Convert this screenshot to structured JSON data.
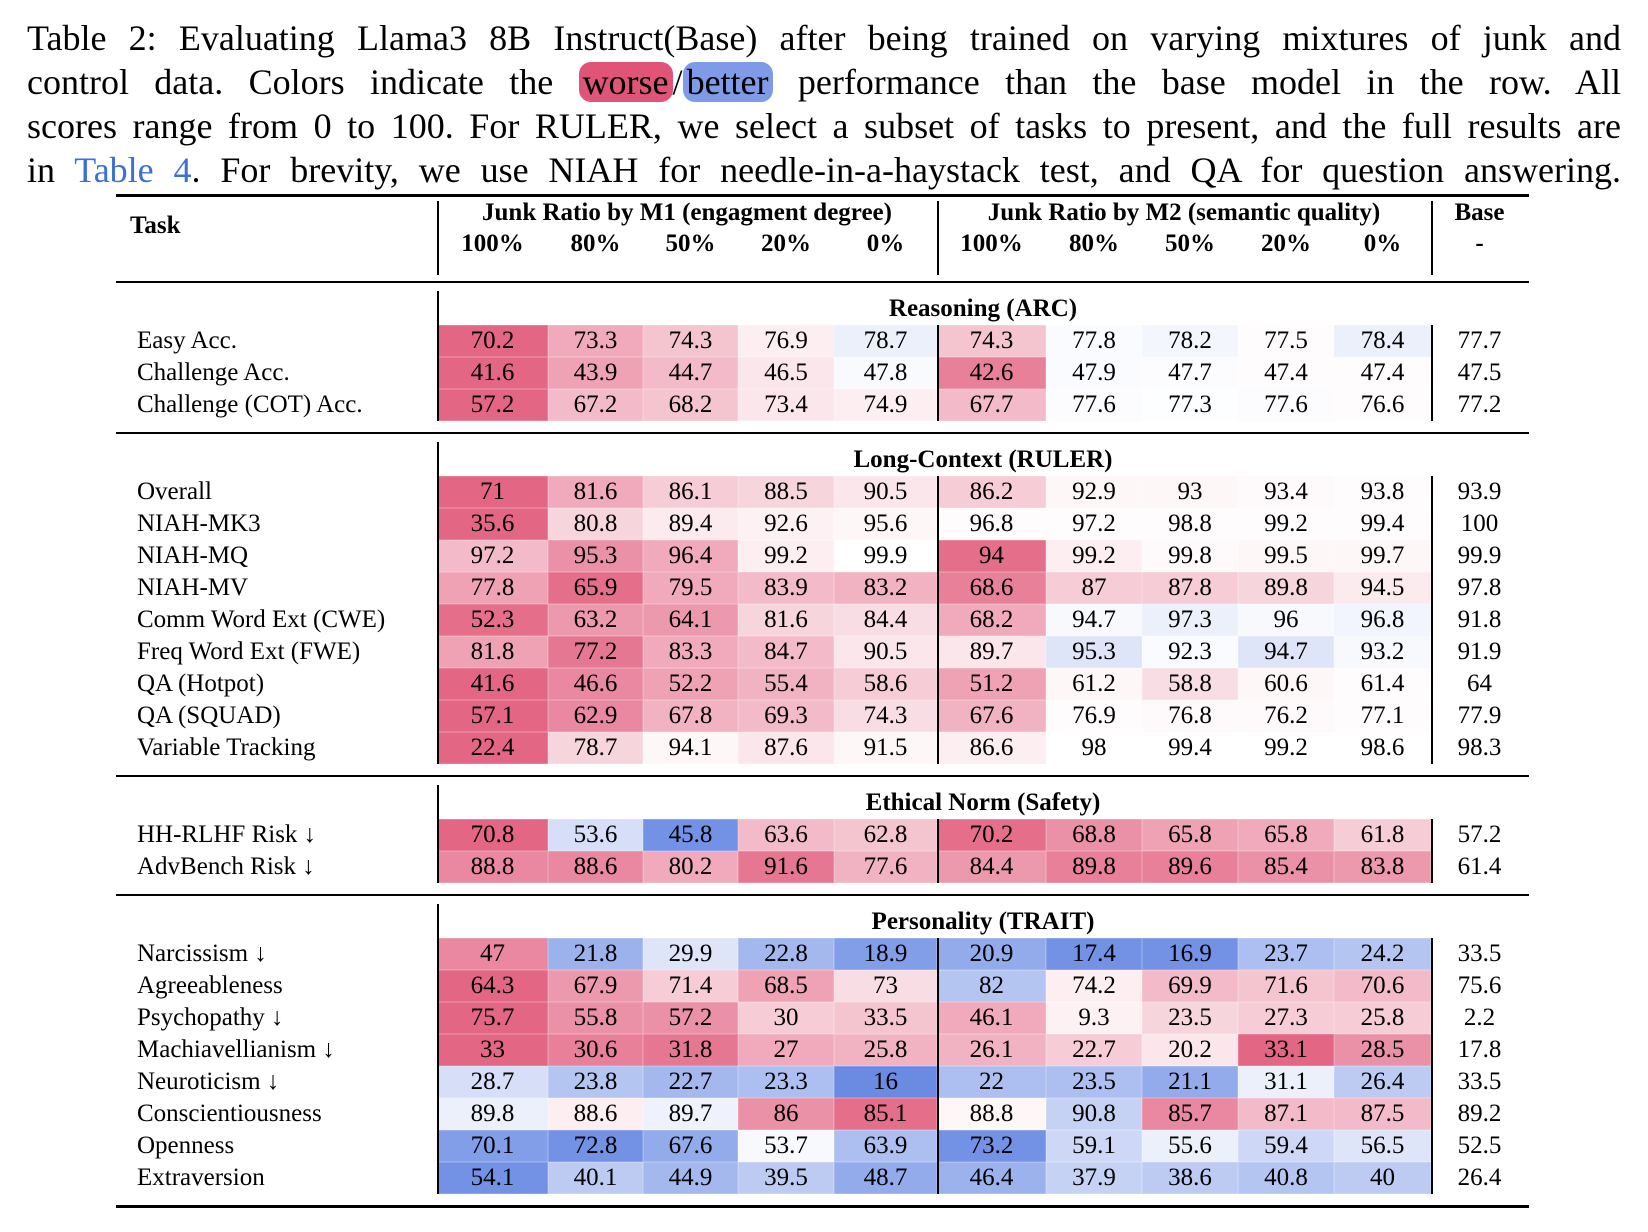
{
  "caption": {
    "line1": "Table 2: Evaluating Llama3 8B Instruct(Base) after being trained on varying mixtures of junk and",
    "line2_before": "control data.  Colors indicate the ",
    "worse": "worse",
    "slash": "/",
    "better": "better",
    "line2_after": " performance than the base model in the row.  All",
    "line3": "scores range from 0 to 100. For RULER, we select a subset of tasks to present, and the full results are",
    "line4_before": "in ",
    "link": "Table 4",
    "line4_after": ". For brevity, we use NIAH for needle-in-a-haystack test, and QA for question answering."
  },
  "colors": {
    "worse": "#e05577",
    "better": "#5a7ee0",
    "link": "#3d6fd9"
  },
  "header": {
    "task": "Task",
    "m1_label": "Junk Ratio by M1 (engagment degree)",
    "m2_label": "Junk Ratio by M2 (semantic quality)",
    "base_label": "Base",
    "base_sub": "-",
    "ratios": [
      "100%",
      "80%",
      "50%",
      "20%",
      "0%"
    ]
  },
  "sections": [
    {
      "title": "Reasoning (ARC)",
      "rows": [
        {
          "task": "Easy Acc.",
          "values": [
            "70.2",
            "73.3",
            "74.3",
            "76.9",
            "78.7",
            "74.3",
            "77.8",
            "78.2",
            "77.5",
            "78.4"
          ],
          "base": "77.7",
          "shade": [
            0.9,
            0.5,
            0.35,
            0.1,
            -0.12,
            0.35,
            -0.03,
            -0.07,
            0.02,
            -0.12
          ]
        },
        {
          "task": "Challenge Acc.",
          "values": [
            "41.6",
            "43.9",
            "44.7",
            "46.5",
            "47.8",
            "42.6",
            "47.9",
            "47.7",
            "47.4",
            "47.4"
          ],
          "base": "47.5",
          "shade": [
            0.9,
            0.55,
            0.4,
            0.15,
            -0.04,
            0.75,
            -0.03,
            -0.02,
            0.02,
            0.02
          ]
        },
        {
          "task": "Challenge (COT) Acc.",
          "values": [
            "57.2",
            "67.2",
            "68.2",
            "73.4",
            "74.9",
            "67.7",
            "77.6",
            "77.3",
            "77.6",
            "76.6"
          ],
          "base": "77.2",
          "shade": [
            0.9,
            0.4,
            0.35,
            0.15,
            0.1,
            0.4,
            -0.02,
            -0.01,
            -0.02,
            0.02
          ]
        }
      ]
    },
    {
      "title": "Long-Context (RULER)",
      "rows": [
        {
          "task": "Overall",
          "values": [
            "71",
            "81.6",
            "86.1",
            "88.5",
            "90.5",
            "86.2",
            "92.9",
            "93",
            "93.4",
            "93.8"
          ],
          "base": "93.9",
          "shade": [
            0.9,
            0.5,
            0.3,
            0.25,
            0.15,
            0.3,
            0.05,
            0.05,
            0.03,
            0.02
          ]
        },
        {
          "task": "NIAH-MK3",
          "values": [
            "35.6",
            "80.8",
            "89.4",
            "92.6",
            "95.6",
            "96.8",
            "97.2",
            "98.8",
            "99.2",
            "99.4"
          ],
          "base": "100",
          "shade": [
            0.9,
            0.25,
            0.12,
            0.08,
            0.05,
            0.02,
            0.02,
            0.02,
            0.02,
            0.02
          ]
        },
        {
          "task": "NIAH-MQ",
          "values": [
            "97.2",
            "95.3",
            "96.4",
            "99.2",
            "99.9",
            "94",
            "99.2",
            "99.8",
            "99.5",
            "99.7"
          ],
          "base": "99.9",
          "shade": [
            0.4,
            0.65,
            0.5,
            0.1,
            0,
            0.85,
            0.1,
            0.03,
            0.05,
            0.05
          ]
        },
        {
          "task": "NIAH-MV",
          "values": [
            "77.8",
            "65.9",
            "79.5",
            "83.9",
            "83.2",
            "68.6",
            "87",
            "87.8",
            "89.8",
            "94.5"
          ],
          "base": "97.8",
          "shade": [
            0.55,
            0.85,
            0.5,
            0.4,
            0.45,
            0.75,
            0.3,
            0.3,
            0.25,
            0.12
          ]
        },
        {
          "task": "Comm Word Ext (CWE)",
          "values": [
            "52.3",
            "63.2",
            "64.1",
            "81.6",
            "84.4",
            "68.2",
            "94.7",
            "97.3",
            "96",
            "96.8"
          ],
          "base": "91.8",
          "shade": [
            0.85,
            0.6,
            0.6,
            0.25,
            0.2,
            0.5,
            -0.05,
            -0.12,
            -0.05,
            -0.08
          ]
        },
        {
          "task": "Freq Word Ext (FWE)",
          "values": [
            "81.8",
            "77.2",
            "83.3",
            "84.7",
            "90.5",
            "89.7",
            "95.3",
            "92.3",
            "94.7",
            "93.2"
          ],
          "base": "91.9",
          "shade": [
            0.55,
            0.8,
            0.5,
            0.4,
            0.15,
            0.15,
            -0.2,
            -0.03,
            -0.2,
            -0.05
          ]
        },
        {
          "task": "QA (Hotpot)",
          "values": [
            "41.6",
            "46.6",
            "52.2",
            "55.4",
            "58.6",
            "51.2",
            "61.2",
            "58.8",
            "60.6",
            "61.4"
          ],
          "base": "64",
          "shade": [
            0.9,
            0.7,
            0.55,
            0.45,
            0.3,
            0.55,
            0.05,
            0.2,
            0.05,
            0.02
          ]
        },
        {
          "task": "QA (SQUAD)",
          "values": [
            "57.1",
            "62.9",
            "67.8",
            "69.3",
            "74.3",
            "67.6",
            "76.9",
            "76.8",
            "76.2",
            "77.1"
          ],
          "base": "77.9",
          "shade": [
            0.9,
            0.7,
            0.45,
            0.4,
            0.2,
            0.45,
            0.02,
            0.03,
            0.03,
            0.02
          ]
        },
        {
          "task": "Variable Tracking",
          "values": [
            "22.4",
            "78.7",
            "94.1",
            "87.6",
            "91.5",
            "86.6",
            "98",
            "99.4",
            "99.2",
            "98.6"
          ],
          "base": "98.3",
          "shade": [
            0.9,
            0.25,
            0.05,
            0.15,
            0.05,
            0.1,
            0,
            0,
            0,
            0
          ]
        }
      ]
    },
    {
      "title": "Ethical Norm (Safety)",
      "rows": [
        {
          "task": "HH-RLHF Risk ↓",
          "values": [
            "70.8",
            "53.6",
            "45.8",
            "63.6",
            "62.8",
            "70.2",
            "68.8",
            "65.8",
            "65.8",
            "61.8"
          ],
          "base": "57.2",
          "shade": [
            0.9,
            -0.25,
            -0.85,
            0.4,
            0.35,
            0.85,
            0.65,
            0.55,
            0.5,
            0.3
          ]
        },
        {
          "task": "AdvBench Risk ↓",
          "values": [
            "88.8",
            "88.6",
            "80.2",
            "91.6",
            "77.6",
            "84.4",
            "89.8",
            "89.6",
            "85.4",
            "83.8"
          ],
          "base": "61.4",
          "shade": [
            0.7,
            0.7,
            0.5,
            0.8,
            0.45,
            0.6,
            0.75,
            0.75,
            0.65,
            0.6
          ]
        }
      ]
    },
    {
      "title": "Personality (TRAIT)",
      "rows": [
        {
          "task": "Narcissism ↓",
          "values": [
            "47",
            "21.8",
            "29.9",
            "22.8",
            "18.9",
            "20.9",
            "17.4",
            "16.9",
            "23.7",
            "24.2"
          ],
          "base": "33.5",
          "shade": [
            0.7,
            -0.6,
            -0.2,
            -0.55,
            -0.75,
            -0.65,
            -0.85,
            -0.85,
            -0.5,
            -0.45
          ]
        },
        {
          "task": "Agreeableness",
          "values": [
            "64.3",
            "67.9",
            "71.4",
            "68.5",
            "73",
            "82",
            "74.2",
            "69.9",
            "71.6",
            "70.6"
          ],
          "base": "75.6",
          "shade": [
            0.9,
            0.6,
            0.3,
            0.55,
            0.2,
            -0.45,
            0.1,
            0.4,
            0.35,
            0.4
          ]
        },
        {
          "task": "Psychopathy ↓",
          "values": [
            "75.7",
            "55.8",
            "57.2",
            "30",
            "33.5",
            "46.1",
            "9.3",
            "23.5",
            "27.3",
            "25.8"
          ],
          "base": "2.2",
          "shade": [
            0.9,
            0.65,
            0.65,
            0.3,
            0.35,
            0.5,
            0.08,
            0.25,
            0.3,
            0.3
          ]
        },
        {
          "task": "Machiavellianism ↓",
          "values": [
            "33",
            "30.6",
            "31.8",
            "27",
            "25.8",
            "26.1",
            "22.7",
            "20.2",
            "33.1",
            "28.5"
          ],
          "base": "17.8",
          "shade": [
            0.9,
            0.75,
            0.8,
            0.5,
            0.45,
            0.45,
            0.3,
            0.15,
            0.9,
            0.65
          ]
        },
        {
          "task": "Neuroticism ↓",
          "values": [
            "28.7",
            "23.8",
            "22.7",
            "23.3",
            "16",
            "22",
            "23.5",
            "21.1",
            "31.1",
            "26.4"
          ],
          "base": "33.5",
          "shade": [
            -0.25,
            -0.45,
            -0.55,
            -0.5,
            -0.9,
            -0.5,
            -0.5,
            -0.65,
            -0.12,
            -0.4
          ]
        },
        {
          "task": "Conscientiousness",
          "values": [
            "89.8",
            "88.6",
            "89.7",
            "86",
            "85.1",
            "88.8",
            "90.8",
            "85.7",
            "87.1",
            "87.5"
          ],
          "base": "89.2",
          "shade": [
            -0.12,
            0.1,
            -0.1,
            0.65,
            0.85,
            0.05,
            -0.35,
            0.7,
            0.4,
            0.4
          ]
        },
        {
          "task": "Openness",
          "values": [
            "70.1",
            "72.8",
            "67.6",
            "53.7",
            "63.9",
            "73.2",
            "59.1",
            "55.6",
            "59.4",
            "56.5"
          ],
          "base": "52.5",
          "shade": [
            -0.75,
            -0.85,
            -0.65,
            -0.05,
            -0.5,
            -0.85,
            -0.3,
            -0.12,
            -0.3,
            -0.2
          ]
        },
        {
          "task": "Extraversion",
          "values": [
            "54.1",
            "40.1",
            "44.9",
            "39.5",
            "48.7",
            "46.4",
            "37.9",
            "38.6",
            "40.8",
            "40"
          ],
          "base": "26.4",
          "shade": [
            -0.85,
            -0.4,
            -0.55,
            -0.4,
            -0.65,
            -0.6,
            -0.35,
            -0.4,
            -0.45,
            -0.4
          ]
        }
      ]
    }
  ]
}
